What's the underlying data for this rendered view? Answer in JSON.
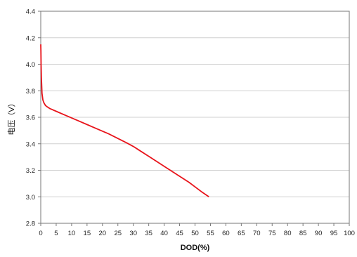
{
  "chart_data": {
    "type": "line",
    "xlabel": "DOD(%)",
    "ylabel": "电压（V）",
    "xlim": [
      0,
      100
    ],
    "ylim": [
      2.8,
      4.4
    ],
    "xticks": [
      "0",
      "5",
      "10",
      "15",
      "20",
      "25",
      "30",
      "35",
      "40",
      "45",
      "50",
      "55",
      "60",
      "65",
      "70",
      "75",
      "80",
      "85",
      "90",
      "95",
      "100"
    ],
    "yticks": [
      "2.8",
      "3.0",
      "3.2",
      "3.4",
      "3.6",
      "3.8",
      "4.0",
      "4.2",
      "4.4"
    ],
    "grid": true,
    "series": [
      {
        "color": "#e8141b",
        "x": [
          0,
          0.05,
          0.1,
          0.2,
          0.4,
          0.7,
          1,
          1.5,
          2,
          3,
          5,
          8,
          10,
          12,
          15,
          18,
          20,
          22,
          25,
          28,
          30,
          32,
          35,
          38,
          40,
          42,
          45,
          48,
          50,
          52,
          54.5
        ],
        "y": [
          4.15,
          4.1,
          4.0,
          3.9,
          3.78,
          3.73,
          3.71,
          3.69,
          3.68,
          3.665,
          3.645,
          3.615,
          3.595,
          3.575,
          3.545,
          3.515,
          3.495,
          3.475,
          3.44,
          3.405,
          3.38,
          3.35,
          3.305,
          3.26,
          3.23,
          3.2,
          3.155,
          3.11,
          3.075,
          3.04,
          3.0
        ]
      }
    ]
  }
}
